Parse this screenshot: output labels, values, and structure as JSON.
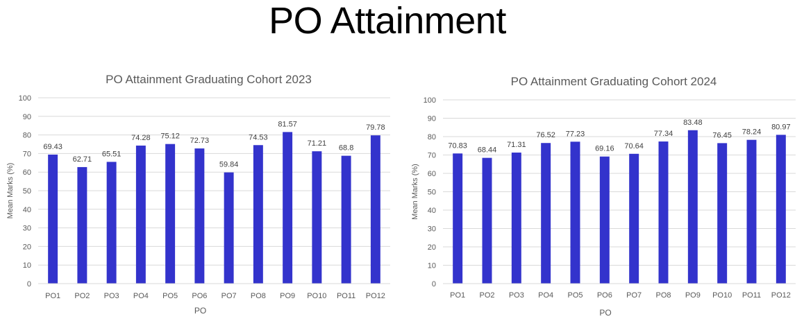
{
  "page": {
    "title": "PO Attainment"
  },
  "colors": {
    "bar": "#3333cc",
    "grid": "#d9d9d9",
    "text": "#595959",
    "label": "#404040"
  },
  "chart_data": [
    {
      "type": "bar",
      "title": "PO Attainment Graduating Cohort 2023",
      "xlabel": "PO",
      "ylabel": "Mean Marks (%)",
      "ylim": [
        0,
        100
      ],
      "yticks": [
        0,
        10,
        20,
        30,
        40,
        50,
        60,
        70,
        80,
        90,
        100
      ],
      "grid": true,
      "categories": [
        "PO1",
        "PO2",
        "PO3",
        "PO4",
        "PO5",
        "PO6",
        "PO7",
        "PO8",
        "PO9",
        "PO10",
        "PO11",
        "PO12"
      ],
      "values": [
        69.43,
        62.71,
        65.51,
        74.28,
        75.12,
        72.73,
        59.84,
        74.53,
        81.57,
        71.21,
        68.8,
        79.78
      ]
    },
    {
      "type": "bar",
      "title": "PO Attainment Graduating Cohort 2024",
      "xlabel": "PO",
      "ylabel": "Mean Marks (%)",
      "ylim": [
        0,
        100
      ],
      "yticks": [
        0,
        10,
        20,
        30,
        40,
        50,
        60,
        70,
        80,
        90,
        100
      ],
      "grid": true,
      "categories": [
        "PO1",
        "PO2",
        "PO3",
        "PO4",
        "PO5",
        "PO6",
        "PO7",
        "PO8",
        "PO9",
        "PO10",
        "PO11",
        "PO12"
      ],
      "values": [
        70.83,
        68.44,
        71.31,
        76.52,
        77.23,
        69.16,
        70.64,
        77.34,
        83.48,
        76.45,
        78.24,
        80.97
      ]
    }
  ]
}
